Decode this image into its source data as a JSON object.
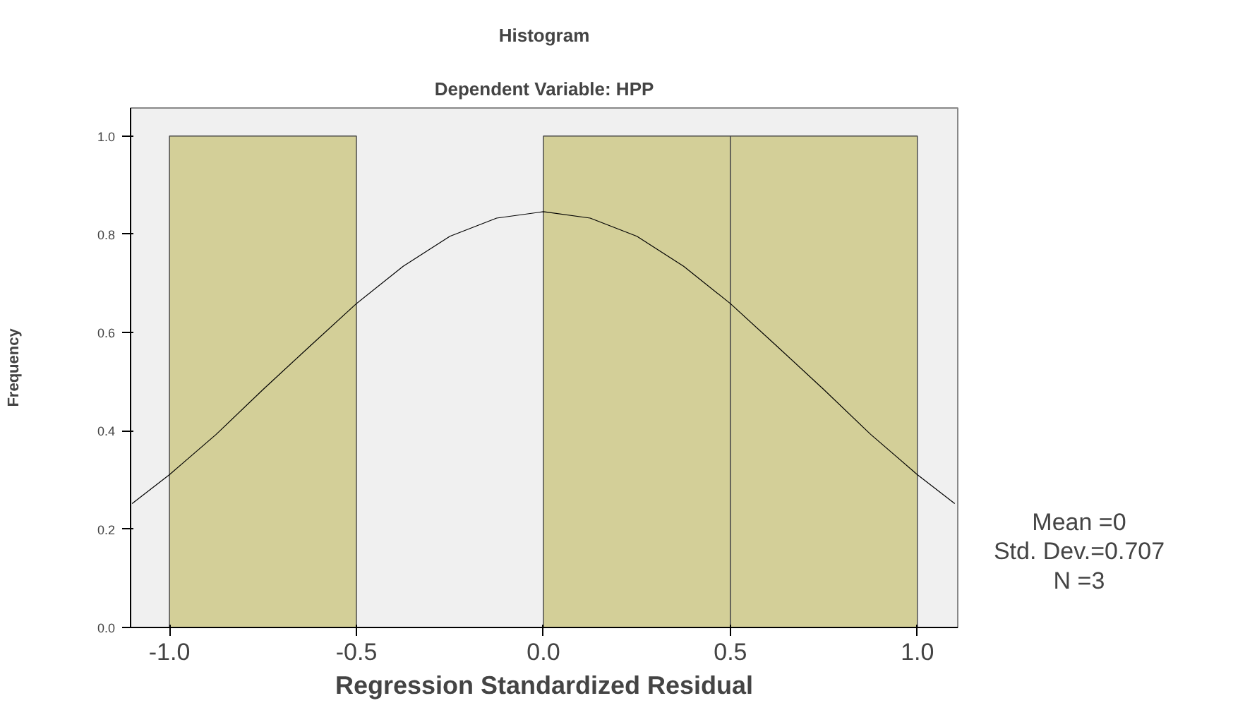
{
  "chart_data": {
    "type": "histogram",
    "title": "Histogram",
    "subtitle": "Dependent Variable: HPP",
    "xlabel": "Regression Standardized Residual",
    "ylabel": "Frequency",
    "bins": [
      -1.0,
      -0.5,
      0.0,
      0.5,
      1.0
    ],
    "values": [
      1,
      0,
      1,
      1
    ],
    "color": "#d3cf98",
    "series": [
      {
        "type": "line",
        "color": "#000000",
        "x": [
          -1.1,
          -1.0,
          -0.875,
          -0.75,
          -0.625,
          -0.5,
          -0.375,
          -0.25,
          -0.125,
          0,
          0.125,
          0.25,
          0.375,
          0.5,
          0.625,
          0.75,
          0.875,
          1.0,
          1.1
        ],
        "values": [
          0.252,
          0.311,
          0.393,
          0.484,
          0.572,
          0.659,
          0.735,
          0.796,
          0.833,
          0.846,
          0.833,
          0.796,
          0.735,
          0.659,
          0.572,
          0.484,
          0.393,
          0.311,
          0.252
        ]
      }
    ],
    "xlim": [
      -1.104,
      1.108
    ],
    "ylim": [
      0,
      1.057
    ],
    "xticks": [
      {
        "value": -1.0,
        "label": "-1.0"
      },
      {
        "value": -0.5,
        "label": "-0.5"
      },
      {
        "value": 0,
        "label": "0.0"
      },
      {
        "value": 0.5,
        "label": "0.5"
      },
      {
        "value": 1.0,
        "label": "1.0"
      }
    ],
    "yticks": [
      {
        "value": 0,
        "label": "0.0"
      },
      {
        "value": 0.2,
        "label": "0.2"
      },
      {
        "value": 0.4,
        "label": "0.4"
      },
      {
        "value": 0.6,
        "label": "0.6"
      },
      {
        "value": 0.8,
        "label": "0.8"
      },
      {
        "value": 1.0,
        "label": "1.0"
      }
    ],
    "grid": false,
    "annotations": [
      "Mean =0",
      "Std. Dev.=0.707",
      "N =3"
    ]
  }
}
